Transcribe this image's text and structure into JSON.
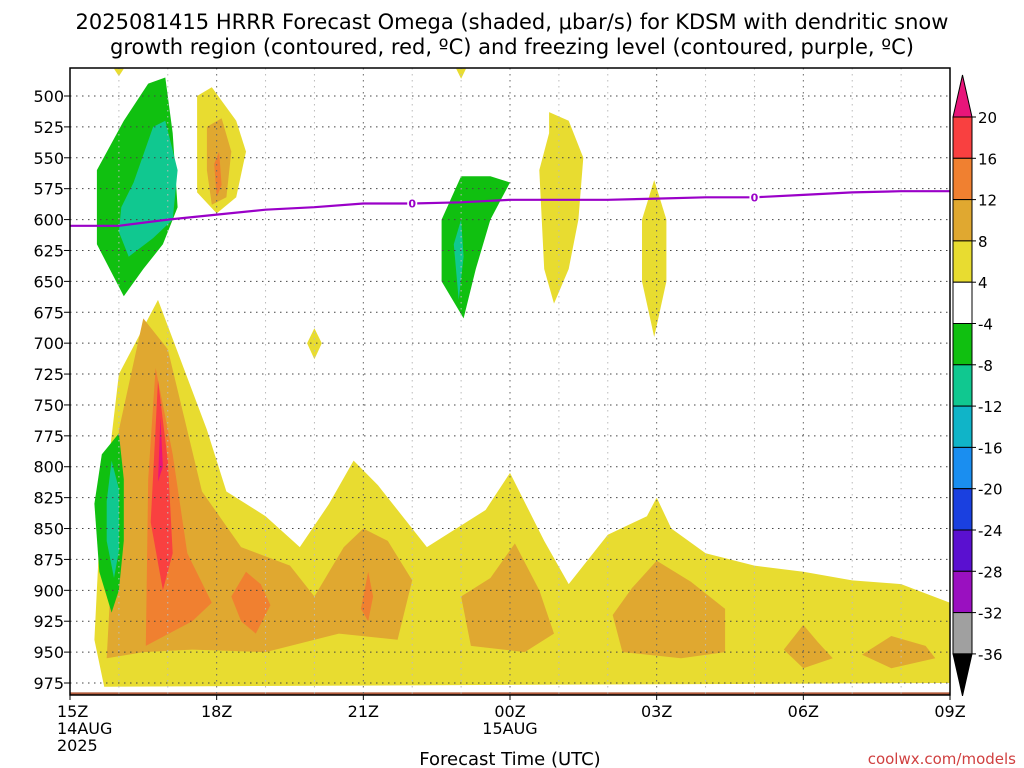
{
  "title": {
    "line1": "2025081415 HRRR Forecast Omega (shaded, μbar/s) for KDSM with dendritic snow",
    "line2": "growth region (contoured, red, ºC) and freezing level (contoured, purple, ºC)"
  },
  "credit": "coolwx.com/models",
  "chart_data": {
    "type": "heatmap",
    "title": "2025081415 HRRR Forecast Omega (shaded, μbar/s) for KDSM with dendritic snow growth region (contoured, red, ºC) and freezing level (contoured, purple, ºC)",
    "xlabel": "Forecast Time (UTC)",
    "ylabel": "",
    "xlim_hours_from_15z": [
      0,
      18
    ],
    "ylim": [
      975,
      490
    ],
    "y_scale": "pressure (hPa)",
    "grid": true,
    "x_ticks": [
      {
        "h": 0,
        "lines": [
          "15Z",
          "14AUG",
          "2025"
        ]
      },
      {
        "h": 3,
        "lines": [
          "18Z"
        ]
      },
      {
        "h": 6,
        "lines": [
          "21Z"
        ]
      },
      {
        "h": 9,
        "lines": [
          "00Z",
          "15AUG"
        ]
      },
      {
        "h": 12,
        "lines": [
          "03Z"
        ]
      },
      {
        "h": 15,
        "lines": [
          "06Z"
        ]
      },
      {
        "h": 18,
        "lines": [
          "09Z"
        ]
      }
    ],
    "y_ticks": [
      500,
      525,
      550,
      575,
      600,
      625,
      650,
      675,
      700,
      725,
      750,
      775,
      800,
      825,
      850,
      875,
      900,
      925,
      950,
      975
    ],
    "colorbar": {
      "levels": [
        "20",
        "16",
        "12",
        "8",
        "4",
        "-4",
        "-8",
        "-12",
        "-16",
        "-20",
        "-24",
        "-28",
        "-32",
        "-36"
      ],
      "colors": [
        "#e8157a",
        "#f94040",
        "#f08030",
        "#e0a830",
        "#e8dc30",
        "#ffffff",
        "#10c010",
        "#10c890",
        "#10b4c8",
        "#1a8ef0",
        "#1a40e0",
        "#5a10d0",
        "#9a10c0",
        "#a0a0a0",
        "#000000"
      ]
    },
    "omega_regions": [
      {
        "value": 4,
        "color": "#e8dc30",
        "points": [
          [
            0.5,
            940
          ],
          [
            0.6,
            860
          ],
          [
            1.0,
            725
          ],
          [
            1.8,
            665
          ],
          [
            2.8,
            770
          ],
          [
            3.2,
            820
          ],
          [
            4.0,
            840
          ],
          [
            4.7,
            865
          ],
          [
            5.3,
            830
          ],
          [
            5.8,
            795
          ],
          [
            6.3,
            815
          ],
          [
            7.3,
            865
          ],
          [
            8.5,
            835
          ],
          [
            9.0,
            805
          ],
          [
            9.7,
            860
          ],
          [
            10.2,
            895
          ],
          [
            11.0,
            855
          ],
          [
            11.8,
            840
          ],
          [
            12.0,
            825
          ],
          [
            12.3,
            850
          ],
          [
            13.0,
            870
          ],
          [
            14.0,
            880
          ],
          [
            15.0,
            885
          ],
          [
            16.0,
            892
          ],
          [
            17.0,
            895
          ],
          [
            18.0,
            910
          ],
          [
            18.0,
            975
          ],
          [
            0.7,
            978
          ]
        ]
      },
      {
        "value": 4,
        "color": "#e8dc30",
        "points": [
          [
            2.6,
            500
          ],
          [
            2.9,
            493
          ],
          [
            3.4,
            520
          ],
          [
            3.6,
            545
          ],
          [
            3.4,
            582
          ],
          [
            3.0,
            595
          ],
          [
            2.6,
            578
          ],
          [
            2.6,
            530
          ]
        ]
      },
      {
        "value": 4,
        "color": "#e8dc30",
        "points": [
          [
            9.8,
            513
          ],
          [
            10.2,
            520
          ],
          [
            10.5,
            550
          ],
          [
            10.4,
            600
          ],
          [
            10.2,
            640
          ],
          [
            9.9,
            668
          ],
          [
            9.7,
            640
          ],
          [
            9.6,
            560
          ],
          [
            9.8,
            530
          ]
        ]
      },
      {
        "value": 4,
        "color": "#e8dc30",
        "points": [
          [
            11.95,
            568
          ],
          [
            12.2,
            600
          ],
          [
            12.2,
            650
          ],
          [
            11.95,
            695
          ],
          [
            11.7,
            650
          ],
          [
            11.7,
            600
          ]
        ]
      },
      {
        "value": 4,
        "color": "#e8dc30",
        "points": [
          [
            5.0,
            688
          ],
          [
            5.15,
            700
          ],
          [
            5.0,
            713
          ],
          [
            4.85,
            700
          ]
        ]
      },
      {
        "value": 4,
        "color": "#e8dc30",
        "points": [
          [
            0.9,
            478
          ],
          [
            1.1,
            478
          ],
          [
            1.0,
            484
          ]
        ]
      },
      {
        "value": 4,
        "color": "#e8dc30",
        "points": [
          [
            7.9,
            478
          ],
          [
            8.1,
            478
          ],
          [
            8.0,
            486
          ]
        ]
      },
      {
        "value": 8,
        "color": "#e0a830",
        "points": [
          [
            0.75,
            955
          ],
          [
            1.0,
            770
          ],
          [
            1.5,
            680
          ],
          [
            2.0,
            705
          ],
          [
            2.7,
            820
          ],
          [
            3.5,
            865
          ],
          [
            4.5,
            880
          ],
          [
            5.0,
            905
          ],
          [
            5.6,
            865
          ],
          [
            6.0,
            850
          ],
          [
            6.5,
            860
          ],
          [
            7.0,
            892
          ],
          [
            6.7,
            940
          ],
          [
            5.5,
            935
          ],
          [
            4.0,
            950
          ],
          [
            2.5,
            948
          ],
          [
            1.5,
            950
          ]
        ]
      },
      {
        "value": 8,
        "color": "#e0a830",
        "points": [
          [
            2.8,
            525
          ],
          [
            3.1,
            518
          ],
          [
            3.3,
            545
          ],
          [
            3.2,
            582
          ],
          [
            2.9,
            588
          ],
          [
            2.8,
            560
          ]
        ]
      },
      {
        "value": 8,
        "color": "#e0a830",
        "points": [
          [
            8.0,
            905
          ],
          [
            8.6,
            890
          ],
          [
            9.1,
            862
          ],
          [
            9.6,
            900
          ],
          [
            9.9,
            935
          ],
          [
            9.3,
            950
          ],
          [
            8.2,
            945
          ]
        ]
      },
      {
        "value": 8,
        "color": "#e0a830",
        "points": [
          [
            11.1,
            920
          ],
          [
            11.5,
            898
          ],
          [
            12.0,
            876
          ],
          [
            12.7,
            893
          ],
          [
            13.4,
            915
          ],
          [
            13.4,
            950
          ],
          [
            12.5,
            955
          ],
          [
            11.3,
            950
          ]
        ]
      },
      {
        "value": 8,
        "color": "#e0a830",
        "points": [
          [
            14.6,
            948
          ],
          [
            15.0,
            928
          ],
          [
            15.3,
            942
          ],
          [
            15.6,
            955
          ],
          [
            15.0,
            963
          ]
        ]
      },
      {
        "value": 8,
        "color": "#e0a830",
        "points": [
          [
            16.2,
            952
          ],
          [
            16.8,
            937
          ],
          [
            17.5,
            945
          ],
          [
            17.7,
            955
          ],
          [
            16.8,
            963
          ]
        ]
      },
      {
        "value": 12,
        "color": "#f08030",
        "points": [
          [
            1.55,
            945
          ],
          [
            1.6,
            810
          ],
          [
            1.75,
            720
          ],
          [
            2.1,
            790
          ],
          [
            2.4,
            870
          ],
          [
            2.9,
            910
          ],
          [
            2.5,
            925
          ]
        ]
      },
      {
        "value": 12,
        "color": "#f08030",
        "points": [
          [
            3.3,
            905
          ],
          [
            3.6,
            885
          ],
          [
            3.9,
            895
          ],
          [
            4.1,
            912
          ],
          [
            3.8,
            935
          ],
          [
            3.5,
            925
          ]
        ]
      },
      {
        "value": 12,
        "color": "#f08030",
        "points": [
          [
            5.95,
            915
          ],
          [
            6.1,
            885
          ],
          [
            6.2,
            905
          ],
          [
            6.1,
            925
          ]
        ]
      },
      {
        "value": 12,
        "color": "#f08030",
        "points": [
          [
            2.95,
            555
          ],
          [
            3.05,
            545
          ],
          [
            3.1,
            572
          ],
          [
            3.0,
            582
          ]
        ]
      },
      {
        "value": 16,
        "color": "#f94040",
        "points": [
          [
            1.65,
            845
          ],
          [
            1.8,
            730
          ],
          [
            2.0,
            795
          ],
          [
            2.1,
            870
          ],
          [
            1.9,
            900
          ]
        ]
      },
      {
        "value": 20,
        "color": "#e8157a",
        "points": [
          [
            1.85,
            760
          ],
          [
            1.9,
            800
          ],
          [
            1.8,
            812
          ]
        ]
      },
      {
        "value": -4,
        "color": "#10c010",
        "points": [
          [
            1.95,
            485
          ],
          [
            2.1,
            530
          ],
          [
            2.2,
            590
          ],
          [
            1.9,
            620
          ],
          [
            1.5,
            640
          ],
          [
            1.1,
            662
          ],
          [
            0.55,
            620
          ],
          [
            0.55,
            560
          ],
          [
            1.1,
            520
          ],
          [
            1.6,
            490
          ]
        ]
      },
      {
        "value": -4,
        "color": "#10c010",
        "points": [
          [
            0.5,
            830
          ],
          [
            0.65,
            790
          ],
          [
            1.0,
            773
          ],
          [
            1.1,
            810
          ],
          [
            1.1,
            860
          ],
          [
            1.0,
            900
          ],
          [
            0.85,
            918
          ],
          [
            0.6,
            885
          ]
        ]
      },
      {
        "value": -4,
        "color": "#10c010",
        "points": [
          [
            8.0,
            565
          ],
          [
            8.6,
            565
          ],
          [
            9.0,
            570
          ],
          [
            8.6,
            600
          ],
          [
            8.3,
            640
          ],
          [
            8.05,
            680
          ],
          [
            7.6,
            650
          ],
          [
            7.6,
            600
          ]
        ]
      },
      {
        "value": -8,
        "color": "#10c890",
        "points": [
          [
            1.3,
            570
          ],
          [
            1.7,
            525
          ],
          [
            1.95,
            520
          ],
          [
            2.2,
            560
          ],
          [
            2.1,
            600
          ],
          [
            1.7,
            615
          ],
          [
            1.2,
            630
          ],
          [
            1.0,
            610
          ],
          [
            1.05,
            590
          ]
        ]
      },
      {
        "value": -8,
        "color": "#10c890",
        "points": [
          [
            0.75,
            828
          ],
          [
            0.85,
            795
          ],
          [
            1.0,
            818
          ],
          [
            1.0,
            868
          ],
          [
            0.9,
            890
          ],
          [
            0.75,
            860
          ]
        ]
      },
      {
        "value": -8,
        "color": "#10c890",
        "points": [
          [
            7.85,
            620
          ],
          [
            8.0,
            600
          ],
          [
            8.05,
            630
          ],
          [
            7.95,
            665
          ]
        ]
      }
    ],
    "ground": {
      "color": "#b05a3a",
      "pressure": 985
    },
    "freezing_level": {
      "color": "#9a00c8",
      "label": "0",
      "points": [
        [
          0.0,
          605
        ],
        [
          1.0,
          605
        ],
        [
          2.0,
          600
        ],
        [
          3.0,
          596
        ],
        [
          4.0,
          592
        ],
        [
          5.0,
          590
        ],
        [
          6.0,
          587
        ],
        [
          7.0,
          587
        ],
        [
          8.0,
          586
        ],
        [
          9.0,
          584
        ],
        [
          10.0,
          584
        ],
        [
          11.0,
          584
        ],
        [
          12.0,
          583
        ],
        [
          13.0,
          582
        ],
        [
          14.0,
          582
        ],
        [
          15.0,
          580
        ],
        [
          16.0,
          578
        ],
        [
          17.0,
          577
        ],
        [
          18.0,
          577
        ]
      ],
      "label_at_hours": [
        7,
        14
      ]
    }
  }
}
